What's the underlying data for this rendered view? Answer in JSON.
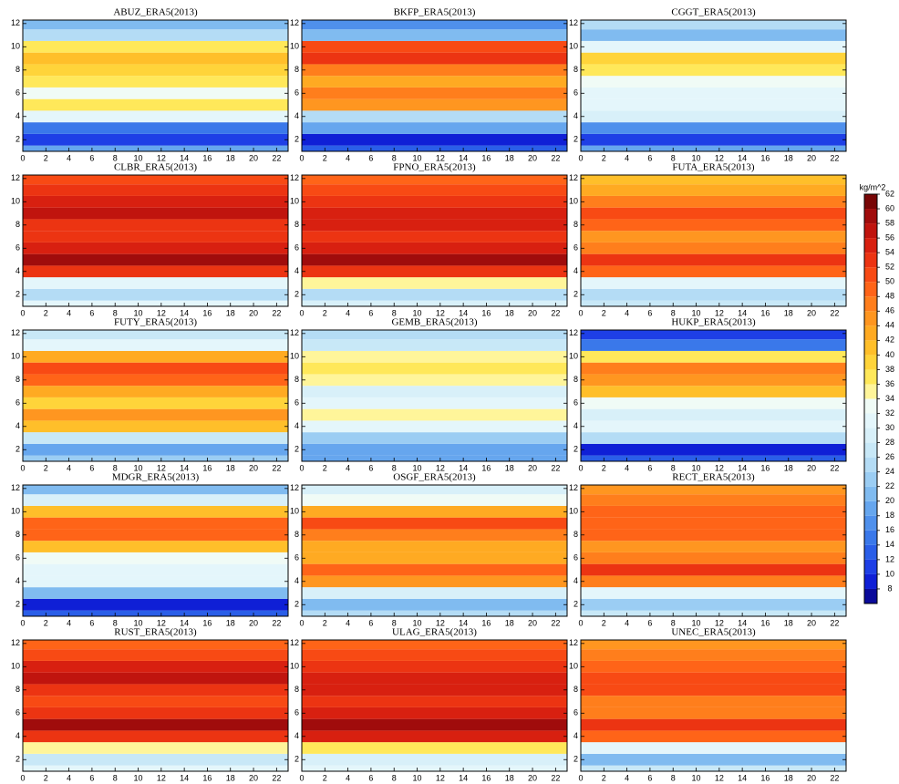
{
  "chart_data": [
    {
      "type": "contour",
      "title": "ABUZ_ERA5(2013)",
      "y": [
        1,
        2,
        3,
        4,
        5,
        6,
        7,
        8,
        9,
        10,
        11,
        12
      ],
      "values": [
        18,
        10,
        14,
        30,
        36,
        32,
        36,
        38,
        40,
        36,
        24,
        20
      ],
      "xlim": [
        0,
        23
      ],
      "ylim": [
        1,
        12.3
      ],
      "xticks": [
        0,
        2,
        4,
        6,
        8,
        10,
        12,
        14,
        16,
        18,
        20,
        22
      ],
      "yticks": [
        2,
        4,
        6,
        8,
        10,
        12
      ]
    },
    {
      "type": "contour",
      "title": "BKFP_ERA5(2013)",
      "y": [
        1,
        2,
        3,
        4,
        5,
        6,
        7,
        8,
        9,
        10,
        11,
        12
      ],
      "values": [
        12,
        8,
        18,
        24,
        44,
        46,
        42,
        46,
        52,
        50,
        20,
        16
      ],
      "xlim": [
        0,
        23
      ],
      "ylim": [
        1,
        12.3
      ],
      "xticks": [
        0,
        2,
        4,
        6,
        8,
        10,
        12,
        14,
        16,
        18,
        20,
        22
      ],
      "yticks": [
        2,
        4,
        6,
        8,
        10,
        12
      ]
    },
    {
      "type": "contour",
      "title": "CGGT_ERA5(2013)",
      "y": [
        1,
        2,
        3,
        4,
        5,
        6,
        7,
        8,
        9,
        10,
        11,
        12
      ],
      "values": [
        18,
        10,
        16,
        28,
        30,
        30,
        32,
        36,
        38,
        30,
        20,
        24
      ],
      "xlim": [
        0,
        23
      ],
      "ylim": [
        1,
        12.3
      ],
      "xticks": [
        0,
        2,
        4,
        6,
        8,
        10,
        12,
        14,
        16,
        18,
        20,
        22
      ],
      "yticks": [
        2,
        4,
        6,
        8,
        10,
        12
      ]
    },
    {
      "type": "contour",
      "title": "CLBR_ERA5(2013)",
      "y": [
        1,
        2,
        3,
        4,
        5,
        6,
        7,
        8,
        9,
        10,
        11,
        12
      ],
      "values": [
        30,
        24,
        30,
        52,
        58,
        54,
        52,
        52,
        56,
        54,
        52,
        50
      ],
      "xlim": [
        0,
        23
      ],
      "ylim": [
        1,
        12.3
      ],
      "xticks": [
        0,
        2,
        4,
        6,
        8,
        10,
        12,
        14,
        16,
        18,
        20,
        22
      ],
      "yticks": [
        2,
        4,
        6,
        8,
        10,
        12
      ]
    },
    {
      "type": "contour",
      "title": "FPNO_ERA5(2013)",
      "y": [
        1,
        2,
        3,
        4,
        5,
        6,
        7,
        8,
        9,
        10,
        11,
        12
      ],
      "values": [
        28,
        24,
        34,
        52,
        58,
        54,
        52,
        54,
        54,
        52,
        50,
        48
      ],
      "xlim": [
        0,
        23
      ],
      "ylim": [
        1,
        12.3
      ],
      "xticks": [
        0,
        2,
        4,
        6,
        8,
        10,
        12,
        14,
        16,
        18,
        20,
        22
      ],
      "yticks": [
        2,
        4,
        6,
        8,
        10,
        12
      ]
    },
    {
      "type": "contour",
      "title": "FUTA_ERA5(2013)",
      "y": [
        1,
        2,
        3,
        4,
        5,
        6,
        7,
        8,
        9,
        10,
        11,
        12
      ],
      "values": [
        26,
        24,
        30,
        48,
        52,
        46,
        44,
        48,
        50,
        46,
        42,
        40
      ],
      "xlim": [
        0,
        23
      ],
      "ylim": [
        1,
        12.3
      ],
      "xticks": [
        0,
        2,
        4,
        6,
        8,
        10,
        12,
        14,
        16,
        18,
        20,
        22
      ],
      "yticks": [
        2,
        4,
        6,
        8,
        10,
        12
      ]
    },
    {
      "type": "contour",
      "title": "FUTY_ERA5(2013)",
      "y": [
        1,
        2,
        3,
        4,
        5,
        6,
        7,
        8,
        9,
        10,
        11,
        12
      ],
      "values": [
        22,
        18,
        26,
        40,
        44,
        38,
        42,
        48,
        50,
        42,
        30,
        26
      ],
      "xlim": [
        0,
        23
      ],
      "ylim": [
        1,
        12.3
      ],
      "xticks": [
        0,
        2,
        4,
        6,
        8,
        10,
        12,
        14,
        16,
        18,
        20,
        22
      ],
      "yticks": [
        2,
        4,
        6,
        8,
        10,
        12
      ]
    },
    {
      "type": "contour",
      "title": "GEMB_ERA5(2013)",
      "y": [
        1,
        2,
        3,
        4,
        5,
        6,
        7,
        8,
        9,
        10,
        11,
        12
      ],
      "values": [
        18,
        18,
        22,
        30,
        34,
        30,
        28,
        34,
        36,
        34,
        26,
        24
      ],
      "xlim": [
        0,
        23
      ],
      "ylim": [
        1,
        12.3
      ],
      "xticks": [
        0,
        2,
        4,
        6,
        8,
        10,
        12,
        14,
        16,
        18,
        20,
        22
      ],
      "yticks": [
        2,
        4,
        6,
        8,
        10,
        12
      ]
    },
    {
      "type": "contour",
      "title": "HUKP_ERA5(2013)",
      "y": [
        1,
        2,
        3,
        4,
        5,
        6,
        7,
        8,
        9,
        10,
        11,
        12
      ],
      "values": [
        12,
        8,
        24,
        30,
        28,
        32,
        40,
        44,
        46,
        36,
        14,
        10
      ],
      "xlim": [
        0,
        23
      ],
      "ylim": [
        1,
        12.3
      ],
      "xticks": [
        0,
        2,
        4,
        6,
        8,
        10,
        12,
        14,
        16,
        18,
        20,
        22
      ],
      "yticks": [
        2,
        4,
        6,
        8,
        10,
        12
      ]
    },
    {
      "type": "contour",
      "title": "MDGR_ERA5(2013)",
      "y": [
        1,
        2,
        3,
        4,
        5,
        6,
        7,
        8,
        9,
        10,
        11,
        12
      ],
      "values": [
        12,
        8,
        20,
        30,
        30,
        32,
        40,
        48,
        48,
        40,
        28,
        20
      ],
      "xlim": [
        0,
        23
      ],
      "ylim": [
        1,
        12.3
      ],
      "xticks": [
        0,
        2,
        4,
        6,
        8,
        10,
        12,
        14,
        16,
        18,
        20,
        22
      ],
      "yticks": [
        2,
        4,
        6,
        8,
        10,
        12
      ]
    },
    {
      "type": "contour",
      "title": "OSGF_ERA5(2013)",
      "y": [
        1,
        2,
        3,
        4,
        5,
        6,
        7,
        8,
        9,
        10,
        11,
        12
      ],
      "values": [
        24,
        20,
        28,
        44,
        48,
        42,
        42,
        46,
        50,
        42,
        32,
        28
      ],
      "xlim": [
        0,
        23
      ],
      "ylim": [
        1,
        12.3
      ],
      "xticks": [
        0,
        2,
        4,
        6,
        8,
        10,
        12,
        14,
        16,
        18,
        20,
        22
      ],
      "yticks": [
        2,
        4,
        6,
        8,
        10,
        12
      ]
    },
    {
      "type": "contour",
      "title": "RECT_ERA5(2013)",
      "y": [
        1,
        2,
        3,
        4,
        5,
        6,
        7,
        8,
        9,
        10,
        11,
        12
      ],
      "values": [
        26,
        22,
        30,
        46,
        52,
        46,
        44,
        48,
        48,
        48,
        46,
        44
      ],
      "xlim": [
        0,
        23
      ],
      "ylim": [
        1,
        12.3
      ],
      "xticks": [
        0,
        2,
        4,
        6,
        8,
        10,
        12,
        14,
        16,
        18,
        20,
        22
      ],
      "yticks": [
        2,
        4,
        6,
        8,
        10,
        12
      ]
    },
    {
      "type": "contour",
      "title": "RUST_ERA5(2013)",
      "y": [
        1,
        2,
        3,
        4,
        5,
        6,
        7,
        8,
        9,
        10,
        11,
        12
      ],
      "values": [
        30,
        26,
        34,
        52,
        58,
        52,
        50,
        52,
        56,
        54,
        50,
        48
      ],
      "xlim": [
        0,
        23
      ],
      "ylim": [
        1,
        12.3
      ],
      "xticks": [
        0,
        2,
        4,
        6,
        8,
        10,
        12,
        14,
        16,
        18,
        20,
        22
      ],
      "yticks": [
        2,
        4,
        6,
        8,
        10,
        12
      ]
    },
    {
      "type": "contour",
      "title": "ULAG_ERA5(2013)",
      "y": [
        1,
        2,
        3,
        4,
        5,
        6,
        7,
        8,
        9,
        10,
        11,
        12
      ],
      "values": [
        30,
        28,
        36,
        54,
        58,
        54,
        52,
        54,
        54,
        52,
        50,
        48
      ],
      "xlim": [
        0,
        23
      ],
      "ylim": [
        1,
        12.3
      ],
      "xticks": [
        0,
        2,
        4,
        6,
        8,
        10,
        12,
        14,
        16,
        18,
        20,
        22
      ],
      "yticks": [
        2,
        4,
        6,
        8,
        10,
        12
      ]
    },
    {
      "type": "contour",
      "title": "UNEC_ERA5(2013)",
      "y": [
        1,
        2,
        3,
        4,
        5,
        6,
        7,
        8,
        9,
        10,
        11,
        12
      ],
      "values": [
        26,
        20,
        30,
        48,
        52,
        46,
        46,
        50,
        50,
        48,
        46,
        44
      ],
      "xlim": [
        0,
        23
      ],
      "ylim": [
        1,
        12.3
      ],
      "xticks": [
        0,
        2,
        4,
        6,
        8,
        10,
        12,
        14,
        16,
        18,
        20,
        22
      ],
      "yticks": [
        2,
        4,
        6,
        8,
        10,
        12
      ]
    }
  ],
  "colorbar": {
    "label": "kg/m^2",
    "bounds": [
      6,
      8,
      10,
      12,
      14,
      16,
      18,
      20,
      22,
      24,
      26,
      28,
      30,
      32,
      34,
      36,
      38,
      40,
      42,
      44,
      46,
      48,
      50,
      52,
      54,
      56,
      58,
      60,
      62
    ],
    "colors": [
      "#0a0a9a",
      "#0f1fd6",
      "#1e3fe6",
      "#2a5ee8",
      "#3a78ea",
      "#4f90ec",
      "#66a6ee",
      "#80bbf0",
      "#9bcdf3",
      "#b4dcf5",
      "#c8e8f7",
      "#d8f0f9",
      "#e4f6fb",
      "#f0fbf6",
      "#fff59a",
      "#ffe85a",
      "#ffd43a",
      "#ffbf2a",
      "#ffaa22",
      "#ff9620",
      "#ff7e1c",
      "#ff6418",
      "#f84a14",
      "#ec3412",
      "#d82010",
      "#c0140e",
      "#a00c0c",
      "#780606"
    ],
    "ticks": [
      8,
      10,
      12,
      14,
      16,
      18,
      20,
      22,
      24,
      26,
      28,
      30,
      32,
      34,
      36,
      38,
      40,
      42,
      44,
      46,
      48,
      50,
      52,
      54,
      56,
      58,
      60,
      62
    ]
  }
}
